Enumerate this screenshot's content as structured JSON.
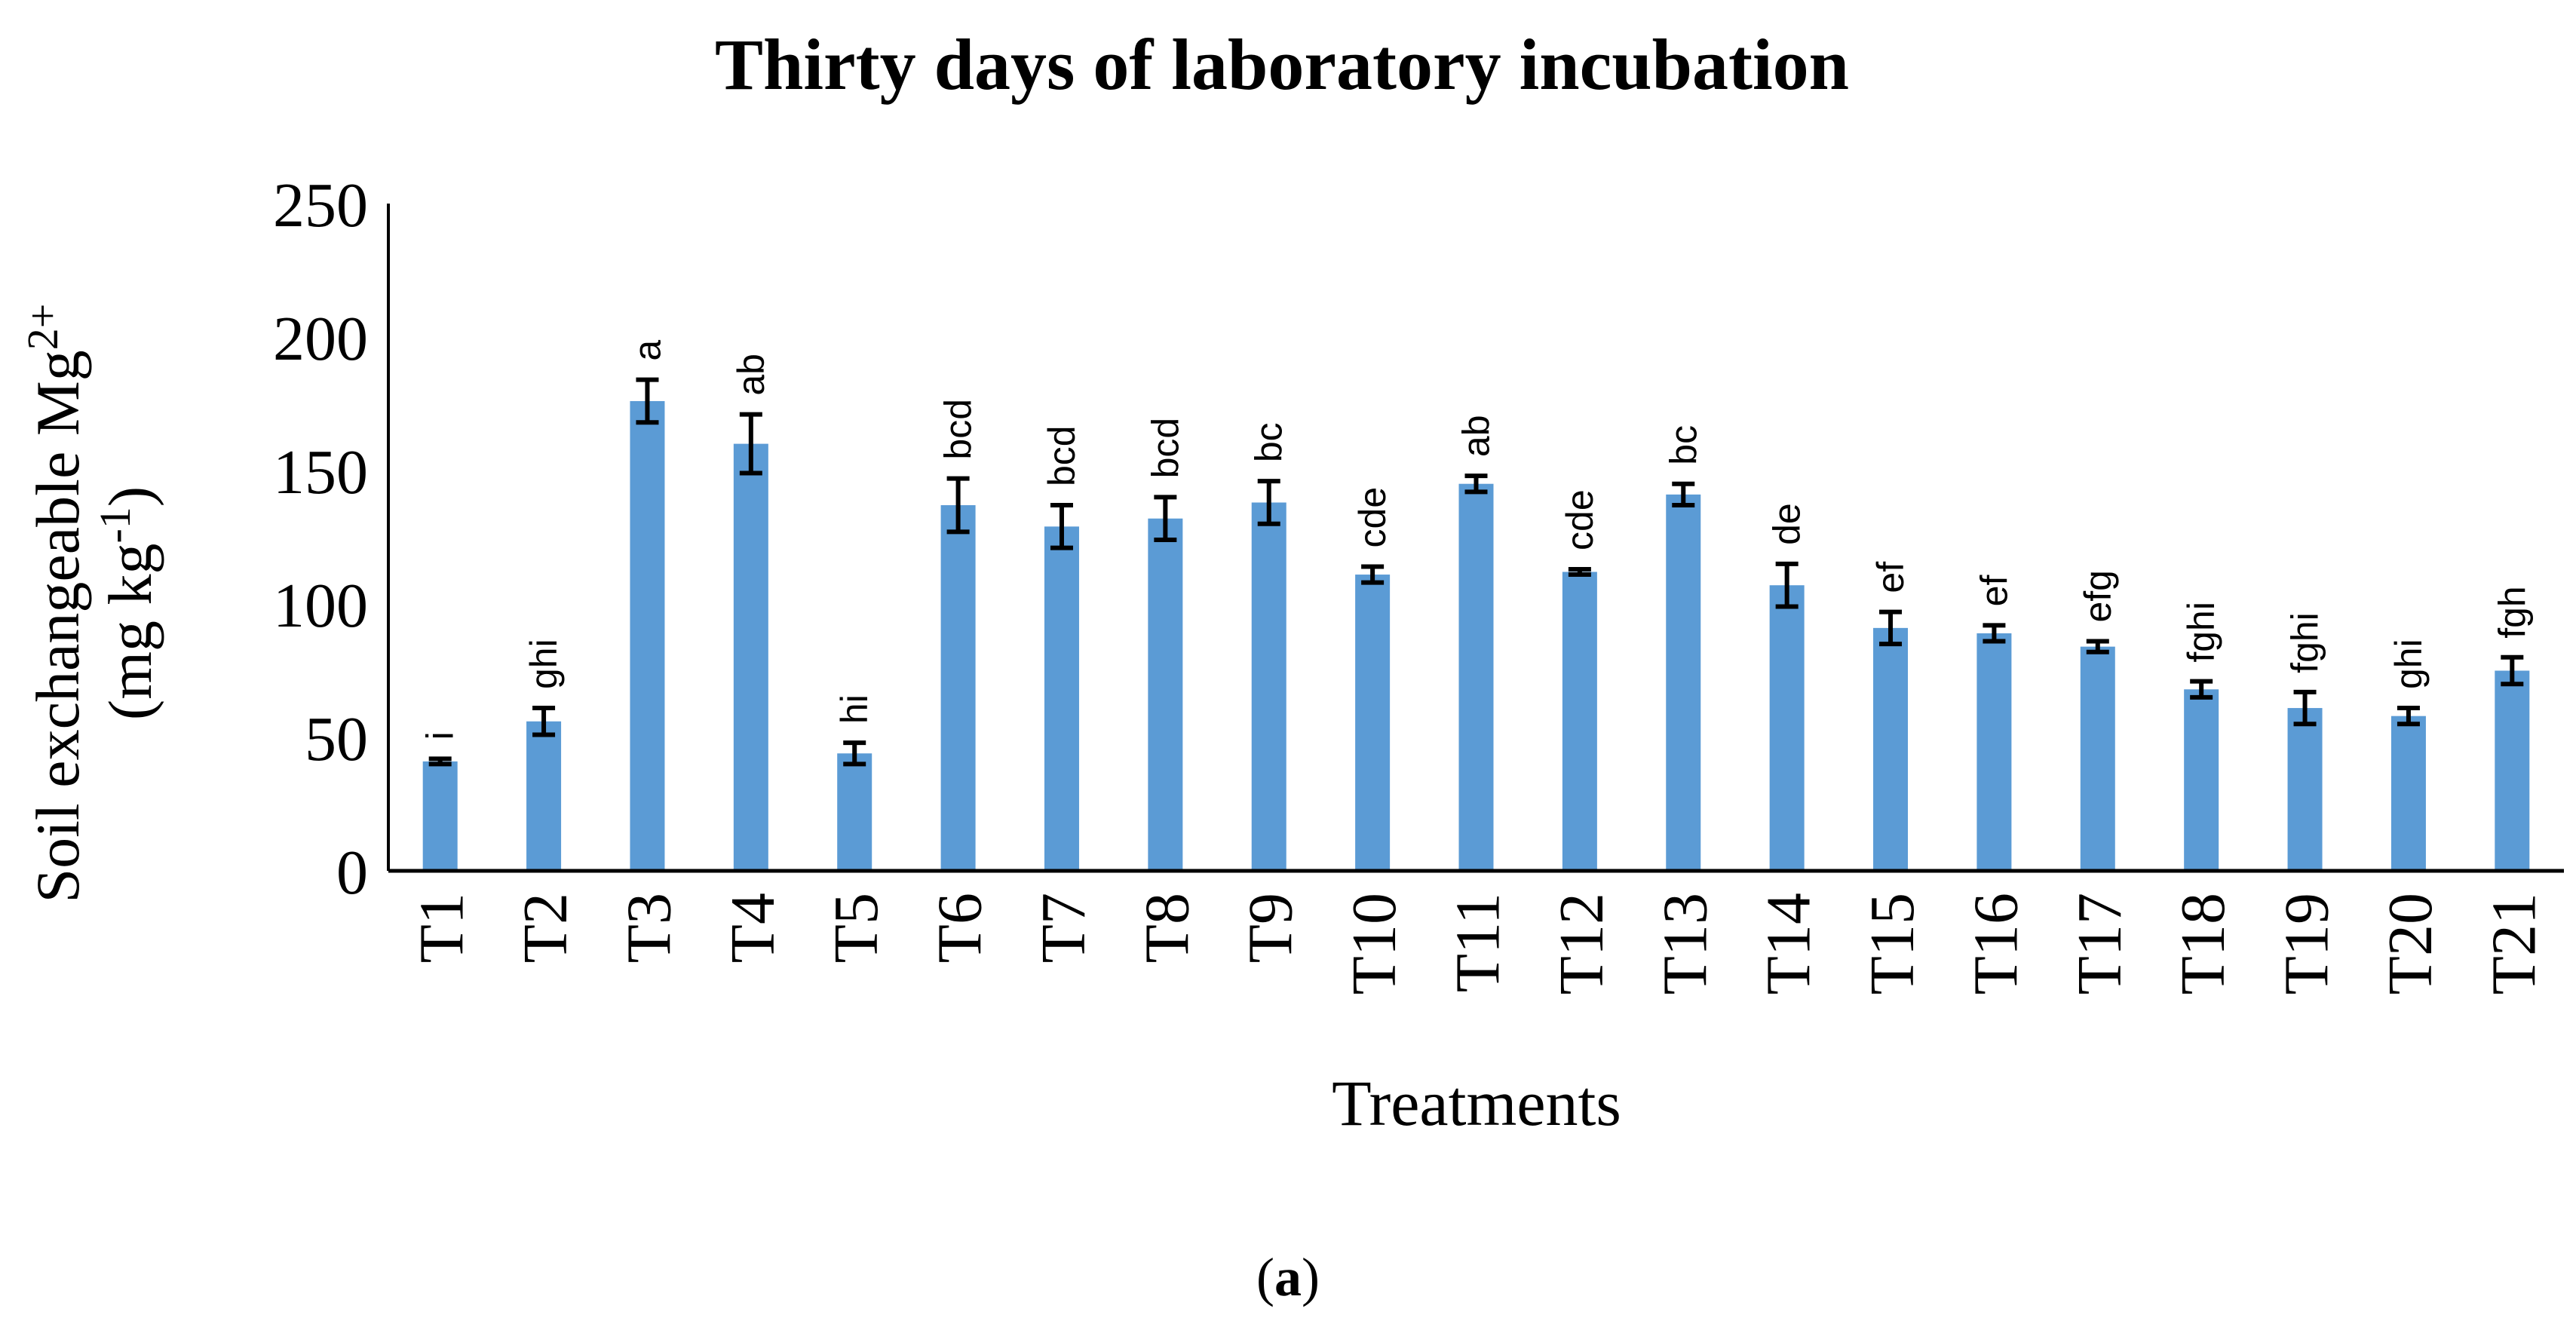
{
  "chart_data": {
    "type": "bar",
    "title": "Thirty days of laboratory incubation",
    "xlabel": "Treatments",
    "ylabel_main": "Soil exchangeable Mg",
    "ylabel_sup": "2+",
    "ylabel_unit_pre": "(mg kg",
    "ylabel_unit_sup": "-1",
    "ylabel_unit_post": ")",
    "ylim": [
      0,
      250
    ],
    "yticks": [
      0,
      50,
      100,
      150,
      200,
      250
    ],
    "grid": false,
    "bar_color": "#5B9BD5",
    "categories": [
      "T1",
      "T2",
      "T3",
      "T4",
      "T5",
      "T6",
      "T7",
      "T8",
      "T9",
      "T10",
      "T11",
      "T12",
      "T13",
      "T14",
      "T15",
      "T16",
      "T17",
      "T18",
      "T19",
      "T20",
      "T21"
    ],
    "values": [
      41,
      56,
      176,
      160,
      44,
      137,
      129,
      132,
      138,
      111,
      145,
      112,
      141,
      107,
      91,
      89,
      84,
      68,
      61,
      58,
      75
    ],
    "errors": [
      1,
      5,
      8,
      11,
      4,
      10,
      8,
      8,
      8,
      3,
      3,
      1,
      4,
      8,
      6,
      3,
      2,
      3,
      6,
      3,
      5
    ],
    "letters": [
      "i",
      "ghi",
      "a",
      "ab",
      "hi",
      "bcd",
      "bcd",
      "bcd",
      "bc",
      "cde",
      "ab",
      "cde",
      "bc",
      "de",
      "ef",
      "ef",
      "efg",
      "fghi",
      "fghi",
      "ghi",
      "fgh"
    ]
  },
  "caption": {
    "open": "(",
    "label": "a",
    "close": ")"
  }
}
